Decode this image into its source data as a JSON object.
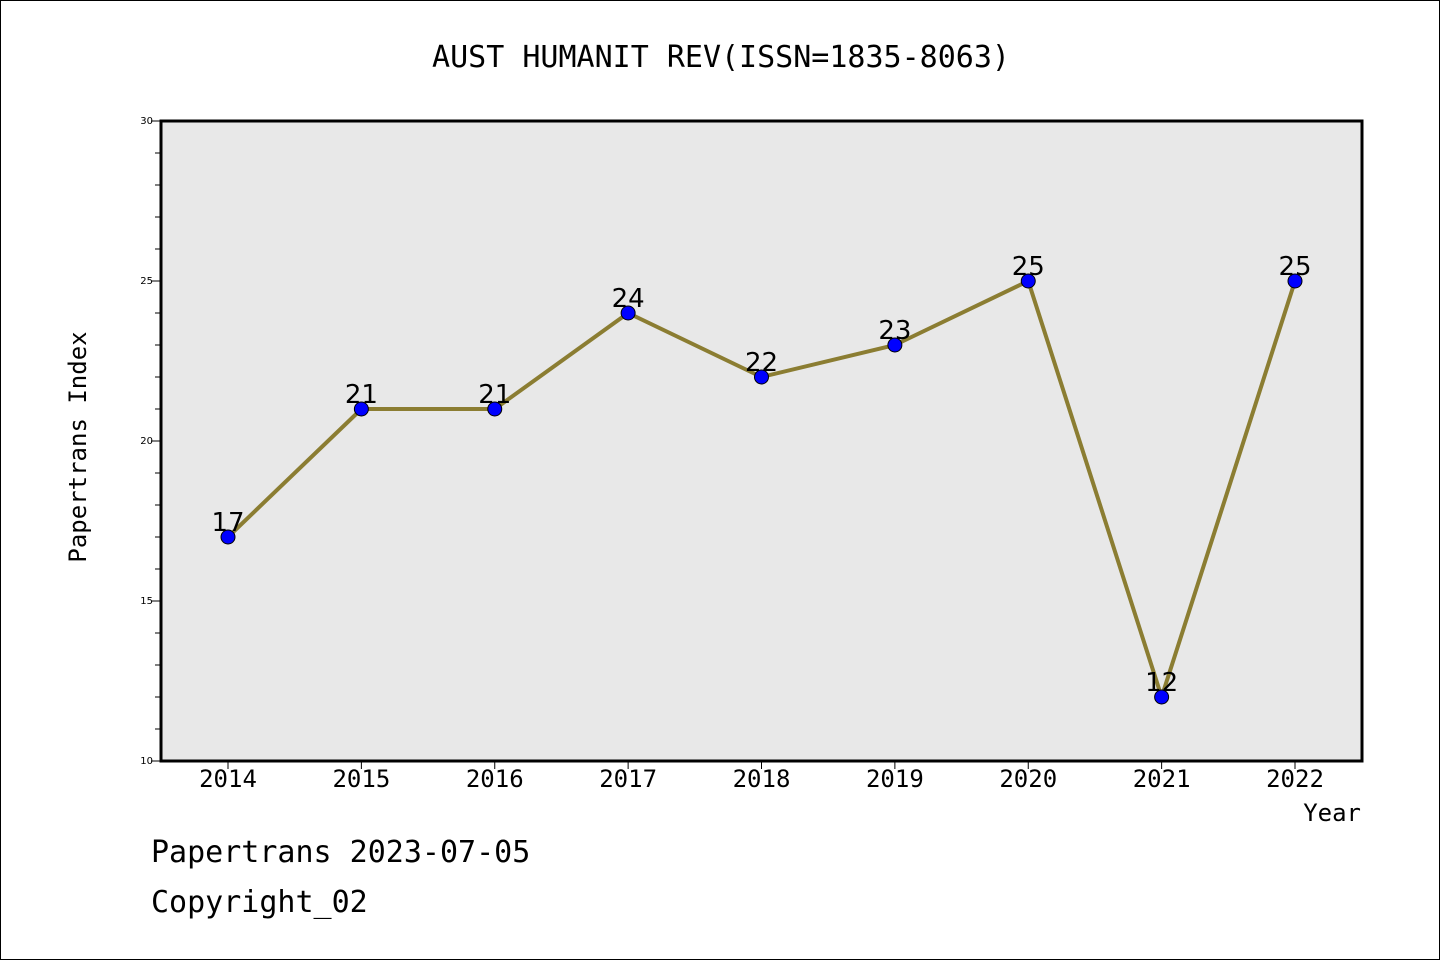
{
  "chart_data": {
    "type": "line",
    "title": "AUST HUMANIT REV(ISSN=1835-8063)",
    "xlabel": "Year",
    "ylabel": "Papertrans Index",
    "x": [
      "2014",
      "2015",
      "2016",
      "2017",
      "2018",
      "2019",
      "2020",
      "2021",
      "2022"
    ],
    "series": [
      {
        "values": [
          17,
          21,
          21,
          24,
          22,
          23,
          25,
          12,
          25
        ]
      }
    ],
    "data_labels": [
      "17",
      "21",
      "21",
      "24",
      "22",
      "23",
      "25",
      "12",
      "25"
    ],
    "ylim": [
      10,
      30
    ],
    "y_ticks": [
      "10",
      "15",
      "20",
      "25",
      "30"
    ],
    "y_tick_values": [
      10,
      15,
      20,
      25,
      30
    ],
    "y_minor_step": 1,
    "grid": false,
    "plot_background": "#e8e8e8",
    "line_color": "#8b7d32",
    "marker_color": "#0000ff",
    "legend": "none"
  },
  "footer": {
    "line1": "Papertrans 2023-07-05",
    "line2": "Copyright_02"
  }
}
